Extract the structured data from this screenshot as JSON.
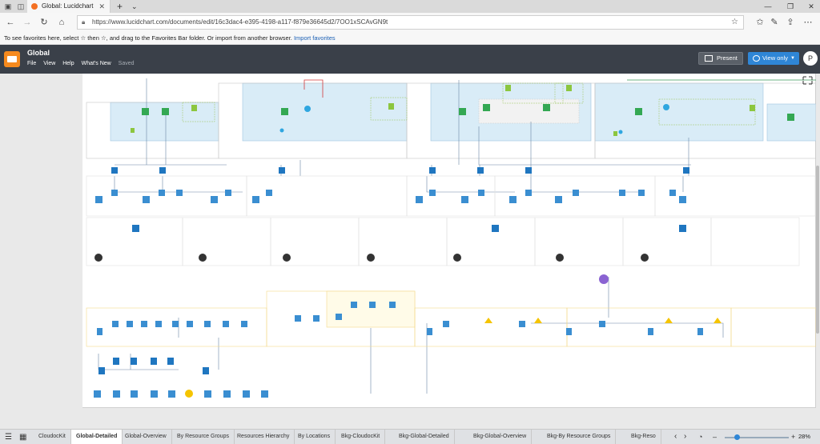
{
  "browser": {
    "tab_title": "Global: Lucidchart",
    "url": "https://www.lucidchart.com/documents/edit/16c3dac4-e395-4198-a117-f879e36645d2/7OO1xSCAvGN9t",
    "favorites_text": "To see favorites here, select ☆ then ☆, and drag to the Favorites Bar folder. Or import from another browser.",
    "favorites_link": "Import favorites"
  },
  "app": {
    "doc_title": "Global",
    "menu": [
      "File",
      "View",
      "Help",
      "What's New"
    ],
    "saved": "Saved",
    "present_label": "Present",
    "view_label": "View only",
    "avatar_initial": "P",
    "accent": "#2f86d6",
    "header_bg": "#3a4049"
  },
  "page_tabs": [
    "CloudocKit",
    "Global-Detailed",
    "Global-Overview",
    "By Resource Groups",
    "Resources Hierarchy",
    "By Locations",
    "Bkg-CloudocKit",
    "Bkg-Global-Detailed",
    "Bkg-Global-Overview",
    "Bkg-By Resource Groups",
    "Bkg-Reso"
  ],
  "active_page_tab": "Global-Detailed",
  "zoom": "28%"
}
